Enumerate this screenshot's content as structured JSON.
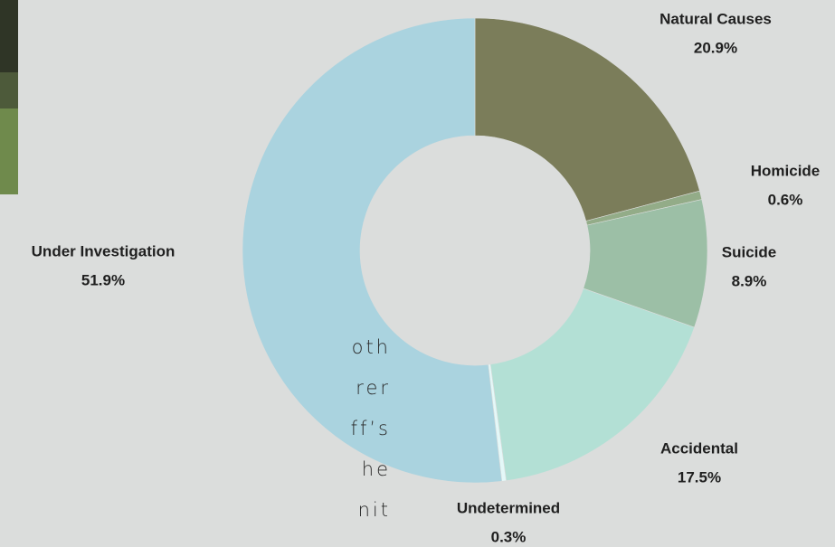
{
  "chart_data": {
    "type": "donut",
    "categories": [
      "Natural Causes",
      "Homicide",
      "Suicide",
      "Accidental",
      "Undetermined",
      "Under Investigation"
    ],
    "values": [
      20.9,
      0.6,
      8.9,
      17.5,
      0.3,
      51.9
    ],
    "value_labels": [
      "20.9%",
      "0.6%",
      "8.9%",
      "17.5%",
      "0.3%",
      "51.9%"
    ],
    "colors": [
      "#7b7d5a",
      "#93ac88",
      "#9cbfa6",
      "#b3e0d5",
      "#e4f8f8",
      "#aad3df"
    ]
  },
  "page_text": [
    "oth",
    "rer",
    "ff’s",
    "he",
    "nit"
  ]
}
